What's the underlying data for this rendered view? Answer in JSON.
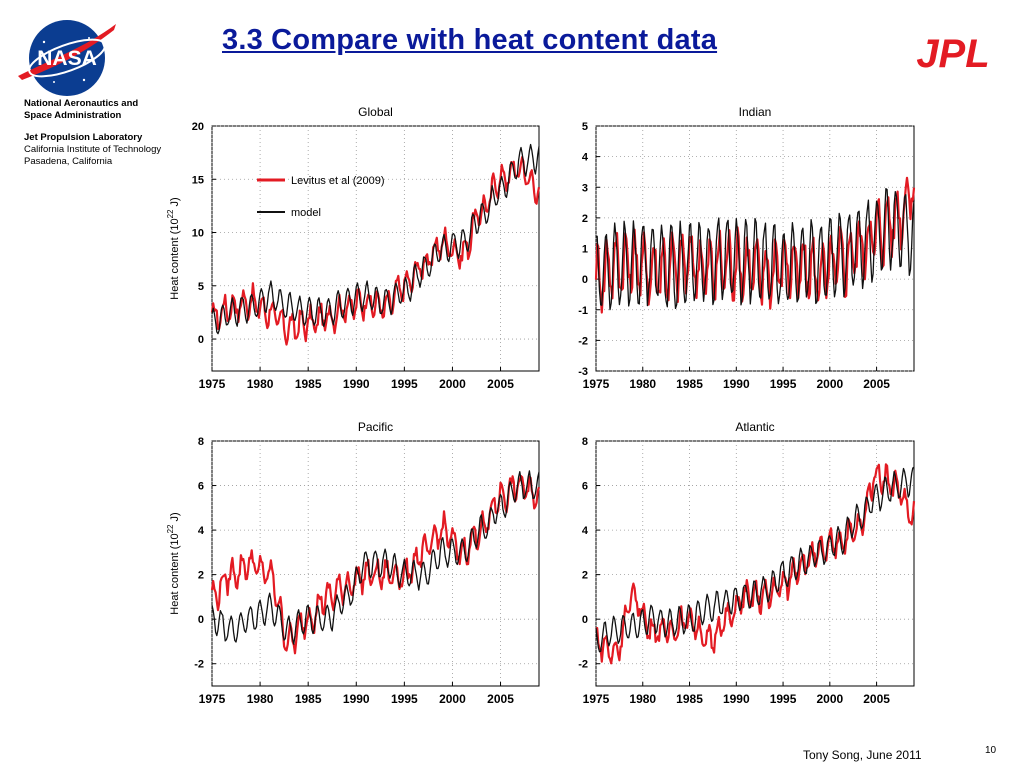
{
  "header": {
    "title": "3.3 Compare with heat content data",
    "nasa_logo_text": "NASA",
    "jpl_logo_text": "JPL",
    "title_color": "#0a1a9a",
    "jpl_color": "#e31b23"
  },
  "org": {
    "line1": "National Aeronautics and",
    "line2": "Space Administration",
    "line3": "Jet Propulsion Laboratory",
    "line4": "California Institute of Technology",
    "line5": "Pasadena, California"
  },
  "footer": {
    "author": "Tony Song, June 2011",
    "page": "10"
  },
  "legend": {
    "obs": "Levitus et al (2009)",
    "model": "model",
    "ylabel_prefix": "Heat content (10",
    "ylabel_exp": "22",
    "ylabel_suffix": " J)"
  },
  "colors": {
    "obs": "#e31b23",
    "model": "#111111"
  },
  "chart_data": [
    {
      "type": "line",
      "title": "Global",
      "xlim": [
        1975,
        2009
      ],
      "ylim": [
        -3,
        20
      ],
      "xticks": [
        1975,
        1980,
        1985,
        1990,
        1995,
        2000,
        2005
      ],
      "yticks": [
        0,
        5,
        10,
        15,
        20
      ],
      "ylabel": "Heat content (10^22 J)",
      "legend": "upper-left",
      "grid": true,
      "series": [
        {
          "name": "Levitus et al (2009)",
          "x": [
            1975,
            1977,
            1979,
            1981,
            1983,
            1985,
            1987,
            1989,
            1991,
            1993,
            1995,
            1997,
            1999,
            2001,
            2003,
            2005,
            2007,
            2009
          ],
          "y": [
            2,
            3,
            3.5,
            2.5,
            1,
            1.5,
            2,
            3,
            3.5,
            3,
            5,
            7,
            9,
            8,
            12,
            15,
            16,
            14
          ]
        },
        {
          "name": "model",
          "x": [
            1975,
            1977,
            1979,
            1981,
            1983,
            1985,
            1987,
            1989,
            1991,
            1993,
            1995,
            1997,
            1999,
            2001,
            2003,
            2005,
            2007,
            2009
          ],
          "y": [
            1.5,
            2.5,
            3,
            4,
            3,
            2.5,
            2.5,
            3.5,
            4,
            3.5,
            4.5,
            6.5,
            8.5,
            9,
            11.5,
            14,
            16.5,
            17
          ]
        }
      ]
    },
    {
      "type": "line",
      "title": "Indian",
      "xlim": [
        1975,
        2009
      ],
      "ylim": [
        -3,
        5
      ],
      "xticks": [
        1975,
        1980,
        1985,
        1990,
        1995,
        2000,
        2005
      ],
      "yticks": [
        -3,
        -2,
        -1,
        0,
        1,
        2,
        3,
        4,
        5
      ],
      "grid": true,
      "series": [
        {
          "name": "Levitus et al (2009)",
          "x": [
            1975,
            1977,
            1979,
            1981,
            1983,
            1985,
            1987,
            1989,
            1991,
            1993,
            1995,
            1997,
            1999,
            2001,
            2003,
            2005,
            2007,
            2009
          ],
          "y": [
            0,
            0.5,
            0.5,
            0.3,
            0.4,
            0.6,
            0.3,
            0.5,
            0.4,
            0.2,
            0.5,
            0.3,
            0.2,
            0.5,
            1,
            1.5,
            2,
            3
          ]
        },
        {
          "name": "model",
          "x": [
            1975,
            1977,
            1979,
            1981,
            1983,
            1985,
            1987,
            1989,
            1991,
            1993,
            1995,
            1997,
            1999,
            2001,
            2003,
            2005,
            2007,
            2009
          ],
          "y": [
            0.2,
            0.4,
            0.5,
            0.6,
            0.4,
            0.5,
            0.6,
            0.7,
            0.6,
            0.5,
            0.4,
            0.5,
            0.6,
            0.8,
            1,
            1.4,
            1.8,
            1.5
          ]
        }
      ]
    },
    {
      "type": "line",
      "title": "Pacific",
      "xlim": [
        1975,
        2009
      ],
      "ylim": [
        -3,
        8
      ],
      "xticks": [
        1975,
        1980,
        1985,
        1990,
        1995,
        2000,
        2005
      ],
      "yticks": [
        -2,
        0,
        2,
        4,
        6,
        8
      ],
      "ylabel": "Heat content (10^22 J)",
      "grid": true,
      "series": [
        {
          "name": "Levitus et al (2009)",
          "x": [
            1975,
            1977,
            1979,
            1981,
            1983,
            1985,
            1987,
            1989,
            1991,
            1993,
            1995,
            1997,
            1999,
            2001,
            2003,
            2005,
            2007,
            2009
          ],
          "y": [
            1,
            2,
            2.5,
            2,
            -1,
            0,
            1,
            1.5,
            2,
            2,
            2,
            3,
            4,
            3,
            4,
            5.5,
            6,
            5.5
          ]
        },
        {
          "name": "model",
          "x": [
            1975,
            1977,
            1979,
            1981,
            1983,
            1985,
            1987,
            1989,
            1991,
            1993,
            1995,
            1997,
            1999,
            2001,
            2003,
            2005,
            2007,
            2009
          ],
          "y": [
            0,
            -0.5,
            0,
            0.5,
            -0.5,
            0,
            0,
            1,
            2.5,
            2.5,
            2,
            2,
            3,
            3,
            4,
            5,
            6,
            6
          ]
        }
      ]
    },
    {
      "type": "line",
      "title": "Atlantic",
      "xlim": [
        1975,
        2009
      ],
      "ylim": [
        -3,
        8
      ],
      "xticks": [
        1975,
        1980,
        1985,
        1990,
        1995,
        2000,
        2005
      ],
      "yticks": [
        -2,
        0,
        2,
        4,
        6,
        8
      ],
      "grid": true,
      "series": [
        {
          "name": "Levitus et al (2009)",
          "x": [
            1975,
            1977,
            1979,
            1981,
            1983,
            1985,
            1987,
            1989,
            1991,
            1993,
            1995,
            1997,
            1999,
            2001,
            2003,
            2005,
            2007,
            2009
          ],
          "y": [
            -1,
            -1.5,
            1,
            -0.5,
            -0.5,
            0,
            -1,
            0,
            1,
            1,
            1.5,
            2.5,
            3,
            3.5,
            4,
            6.5,
            6,
            4.5
          ]
        },
        {
          "name": "model",
          "x": [
            1975,
            1977,
            1979,
            1981,
            1983,
            1985,
            1987,
            1989,
            1991,
            1993,
            1995,
            1997,
            1999,
            2001,
            2003,
            2005,
            2007,
            2009
          ],
          "y": [
            -1,
            -0.5,
            -0.3,
            0,
            -0.2,
            0,
            0.5,
            0.8,
            1,
            1.3,
            2,
            2.5,
            3,
            3.5,
            4.5,
            5.5,
            6,
            6.2
          ]
        }
      ]
    }
  ]
}
